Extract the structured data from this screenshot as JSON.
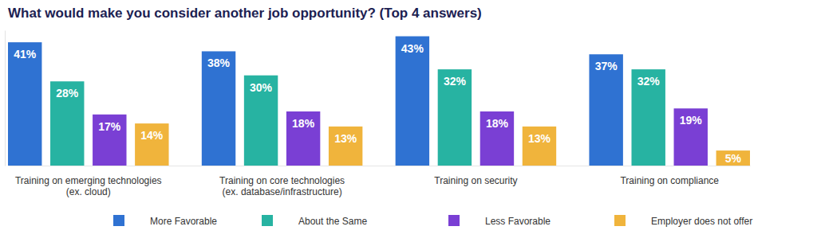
{
  "chart_data": {
    "type": "bar",
    "title": "What would make you consider another job opportunity? (Top 4 answers)",
    "categories": [
      "Training on emerging technologies (ex. cloud)",
      "Training on core technologies (ex. database/infrastructure)",
      "Training on security",
      "Training on compliance"
    ],
    "series": [
      {
        "name": "More Favorable",
        "color": "#2f72d2",
        "values": [
          41,
          38,
          43,
          37
        ],
        "value_labels": [
          "41%",
          "38%",
          "43%",
          "37%"
        ]
      },
      {
        "name": "About the Same",
        "color": "#27b3a2",
        "values": [
          28,
          30,
          32,
          32
        ],
        "value_labels": [
          "28%",
          "30%",
          "32%",
          "32%"
        ]
      },
      {
        "name": "Less Favorable",
        "color": "#7a3fd4",
        "values": [
          17,
          18,
          18,
          19
        ],
        "value_labels": [
          "17%",
          "18%",
          "18%",
          "19%"
        ]
      },
      {
        "name": "Employer does not offer",
        "color": "#f0b43c",
        "values": [
          14,
          13,
          13,
          5
        ],
        "value_labels": [
          "14%",
          "13%",
          "13%",
          "5%"
        ]
      }
    ],
    "ylim": [
      0,
      45
    ],
    "data_labels": true,
    "tick_labels": "x",
    "legend": "bottom"
  }
}
